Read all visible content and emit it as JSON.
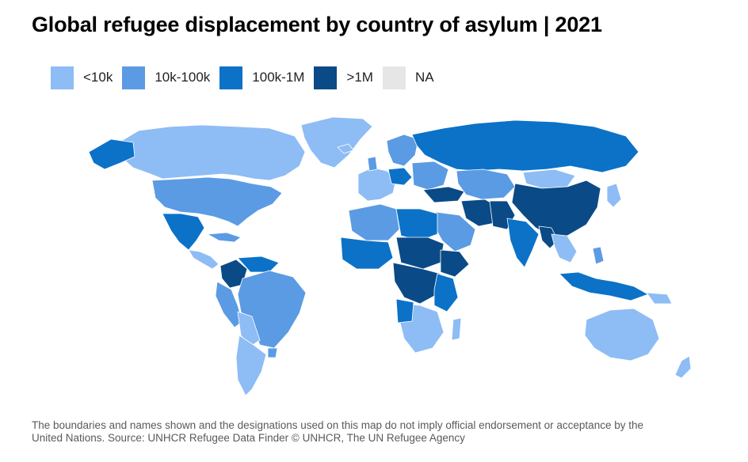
{
  "title": "Global refugee displacement by country of asylum | 2021",
  "legend": [
    {
      "label": "<10k",
      "color": "#8ebcf5"
    },
    {
      "label": "10k-100k",
      "color": "#5b9be3"
    },
    {
      "label": "100k-1M",
      "color": "#0b72c8"
    },
    {
      "label": ">1M",
      "color": "#0a4a86"
    },
    {
      "label": "NA",
      "color": "#e6e6e6"
    }
  ],
  "footer": {
    "line1": "The boundaries and names shown and the designations used on this map do not imply official endorsement or acceptance by the",
    "line2": "United Nations. Source: UNHCR Refugee Data Finder © UNHCR, The UN Refugee Agency"
  },
  "colors": {
    "lt10k": "#8ebcf5",
    "k10_100k": "#5b9be3",
    "k100_1M": "#0b72c8",
    "gt1M": "#0a4a86",
    "na": "#e6e6e6"
  }
}
